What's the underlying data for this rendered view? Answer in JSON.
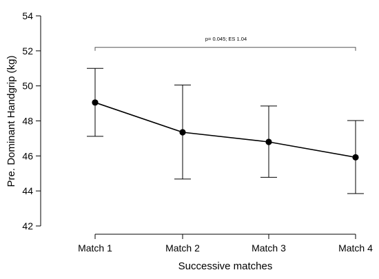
{
  "chart_data": {
    "type": "line",
    "title": "",
    "xlabel": "Successive matches",
    "ylabel": "Pre. Dominant Handgrip (kg)",
    "ylim": [
      42,
      54
    ],
    "yticks": [
      42,
      44,
      46,
      48,
      50,
      52,
      54
    ],
    "grid": false,
    "categories": [
      "Match 1",
      "Match 2",
      "Match 3",
      "Match 4"
    ],
    "series": [
      {
        "values": [
          49.05,
          47.35,
          46.8,
          45.92
        ],
        "error_upper": [
          51.0,
          50.05,
          48.85,
          48.02
        ],
        "error_lower": [
          47.12,
          44.68,
          44.78,
          43.85
        ],
        "color": "#000000"
      }
    ],
    "annotations": [
      {
        "text": "p= 0.045; ES 1.04",
        "from": "Match 1",
        "to": "Match 4",
        "bracket_y": 52.2
      }
    ]
  }
}
